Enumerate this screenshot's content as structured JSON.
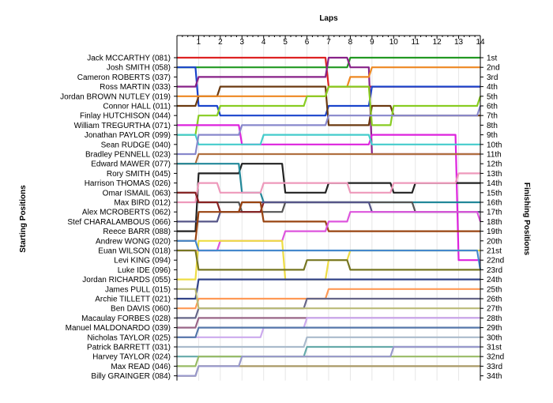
{
  "chart_data": {
    "type": "line",
    "title": "Laps",
    "xlabel": "Laps",
    "ylabel_left": "Starting Positions",
    "ylabel_right": "Finishing Positions",
    "x_ticks": [
      "1",
      "2",
      "3",
      "4",
      "5",
      "6",
      "7",
      "8",
      "9",
      "10",
      "11",
      "12",
      "13",
      "14"
    ],
    "xlim": [
      0,
      14
    ],
    "ylim": [
      1,
      34
    ],
    "grid": true,
    "drivers": [
      "Jack MCCARTHY (081)",
      "Josh SMITH (058)",
      "Cameron ROBERTS (037)",
      "Ross MARTIN (033)",
      "Jordan BROWN NUTLEY (019)",
      "Connor HALL (011)",
      "Finlay HUTCHISON (044)",
      "William TREGURTHA (071)",
      "Jonathan PAYLOR (099)",
      "Sean RUDGE (040)",
      "Bradley PENNELL (023)",
      "Edward MAWER (077)",
      "Rory SMITH (045)",
      "Harrison THOMAS (026)",
      "Omar ISMAIL (063)",
      "Max BIRD (012)",
      "Alex MCROBERTS (062)",
      "Stef CHARALAMBOUS (066)",
      "Reece BARR (088)",
      "Andrew WONG (020)",
      "Euan WILSON (018)",
      "Levi KING (094)",
      "Luke IDE (096)",
      "Jordan RICHARDS (055)",
      "James PULL (015)",
      "Archie TILLETT (021)",
      "Ben DAVIS (060)",
      "Macaulay FORBES (028)",
      "Manuel MALDONARDO (039)",
      "Nicholas TAYLOR (025)",
      "Patrick BARRETT (031)",
      "Harvey TAYLOR (024)",
      "Max READ (046)",
      "Billy GRAINGER (084)"
    ],
    "finishing_labels": [
      "1st",
      "2nd",
      "3rd",
      "4th",
      "5th",
      "6th",
      "7th",
      "8th",
      "9th",
      "10th",
      "11th",
      "12th",
      "13th",
      "14th",
      "15th",
      "16th",
      "17th",
      "18th",
      "19th",
      "20th",
      "21st",
      "22nd",
      "23rd",
      "24th",
      "25th",
      "26th",
      "27th",
      "28th",
      "29th",
      "30th",
      "31st",
      "32nd",
      "33rd",
      "34th"
    ],
    "series": [
      {
        "color": "#dd2222",
        "positions": [
          1,
          1,
          1,
          1,
          1,
          1,
          1,
          4,
          4,
          4,
          4,
          4,
          4,
          4,
          4
        ]
      },
      {
        "color": "#229922",
        "positions": [
          2,
          2,
          2,
          2,
          2,
          2,
          2,
          2,
          1,
          1,
          1,
          1,
          1,
          1,
          1
        ]
      },
      {
        "color": "#1a44cc",
        "positions": [
          2,
          6,
          7,
          7,
          7,
          7,
          7,
          6,
          6,
          4,
          4,
          4,
          4,
          4,
          4
        ]
      },
      {
        "color": "#882288",
        "positions": [
          4,
          3,
          3,
          3,
          3,
          3,
          3,
          1,
          2,
          11,
          11,
          11,
          11,
          11,
          11
        ]
      },
      {
        "color": "#6b3a10",
        "positions": [
          6,
          5,
          4,
          4,
          4,
          4,
          4,
          8,
          8,
          6,
          7,
          7,
          7,
          7,
          7
        ]
      },
      {
        "color": "#ee8822",
        "positions": [
          5,
          5,
          5,
          5,
          5,
          5,
          5,
          4,
          3,
          2,
          2,
          2,
          2,
          2,
          2
        ]
      },
      {
        "color": "#88cc22",
        "positions": [
          9,
          7,
          6,
          6,
          6,
          6,
          5,
          4,
          4,
          8,
          6,
          6,
          6,
          6,
          5
        ]
      },
      {
        "color": "#dd22dd",
        "positions": [
          8,
          8,
          8,
          10,
          10,
          10,
          10,
          10,
          10,
          9,
          9,
          9,
          9,
          22,
          22
        ]
      },
      {
        "color": "#44cccc",
        "positions": [
          9,
          10,
          10,
          10,
          9,
          9,
          9,
          9,
          9,
          10,
          10,
          10,
          10,
          10,
          10
        ]
      },
      {
        "color": "#8888cc",
        "positions": [
          11,
          9,
          9,
          8,
          8,
          8,
          8,
          7,
          7,
          7,
          7,
          7,
          7,
          7,
          6
        ]
      },
      {
        "color": "#b07040",
        "positions": [
          12,
          11,
          11,
          11,
          11,
          11,
          11,
          11,
          11,
          11,
          11,
          11,
          11,
          11,
          11
        ]
      },
      {
        "color": "#222222",
        "positions": [
          19,
          13,
          13,
          12,
          12,
          15,
          15,
          14,
          14,
          14,
          15,
          14,
          14,
          14,
          14
        ]
      },
      {
        "color": "#228899",
        "positions": [
          12,
          12,
          12,
          15,
          16,
          16,
          16,
          16,
          16,
          16,
          16,
          16,
          16,
          16,
          16
        ]
      },
      {
        "color": "#555555",
        "positions": [
          15,
          16,
          16,
          17,
          17,
          16,
          16,
          16,
          16,
          16,
          16,
          17,
          17,
          17,
          17
        ]
      },
      {
        "color": "#ee99bb",
        "positions": [
          16,
          14,
          15,
          15,
          14,
          14,
          14,
          14,
          15,
          15,
          14,
          14,
          14,
          13,
          13
        ]
      },
      {
        "color": "#882222",
        "positions": [
          15,
          16,
          17,
          17,
          16,
          16
        ]
      },
      {
        "color": "#555588",
        "positions": [
          18,
          18,
          17,
          16,
          16,
          16,
          16,
          16,
          16,
          17,
          17,
          17,
          17,
          17,
          17
        ]
      },
      {
        "color": "#994411",
        "positions": [
          20,
          17,
          17,
          16,
          18,
          18,
          18,
          19,
          19,
          19,
          19,
          19,
          19,
          19,
          19
        ]
      },
      {
        "color": "#dd55dd",
        "positions": [
          21,
          21,
          20,
          20,
          20,
          19,
          19,
          18,
          17,
          17,
          17,
          17,
          17,
          17,
          18
        ]
      },
      {
        "color": "#eedd44",
        "positions": [
          24,
          20,
          20,
          20,
          20,
          24,
          24,
          22,
          21,
          21,
          21,
          21,
          21,
          21,
          21
        ]
      },
      {
        "color": "#4488cc",
        "positions": [
          20,
          21,
          21,
          21,
          21,
          21,
          21,
          21,
          21,
          21,
          21,
          21,
          21,
          21,
          23
        ]
      },
      {
        "color": "#777722",
        "positions": [
          21,
          23,
          23,
          23,
          23,
          23,
          22,
          22,
          23,
          23,
          23,
          23,
          23,
          23,
          23
        ]
      },
      {
        "color": "#334488",
        "positions": [
          26,
          24,
          24,
          24,
          24,
          24,
          24,
          24,
          24,
          24,
          24,
          24,
          24,
          24,
          24
        ]
      },
      {
        "color": "#ff9955",
        "positions": [
          27,
          26,
          26,
          26,
          26,
          26,
          26,
          25,
          25,
          25,
          25,
          25,
          25,
          25,
          25
        ]
      },
      {
        "color": "#666688",
        "positions": [
          28,
          27,
          27,
          27,
          27,
          27,
          26,
          26,
          26,
          26,
          26,
          26,
          26,
          26,
          26
        ]
      },
      {
        "color": "#bbbb77",
        "positions": [
          25,
          27,
          27,
          27,
          27,
          27,
          27,
          27,
          27,
          27,
          27,
          27,
          27,
          27,
          27
        ]
      },
      {
        "color": "#996688",
        "positions": [
          29,
          28,
          28,
          28,
          28,
          28,
          28,
          28,
          28,
          28,
          28,
          28,
          28,
          28,
          28
        ]
      },
      {
        "color": "#ccaaee",
        "positions": [
          30,
          30,
          30,
          30,
          29,
          29,
          28,
          28,
          28,
          28,
          28,
          28,
          28,
          28,
          28
        ]
      },
      {
        "color": "#5577aa",
        "positions": [
          30,
          29,
          29,
          29,
          29,
          29,
          29,
          29,
          29,
          29,
          29,
          29,
          29,
          29,
          29
        ]
      },
      {
        "color": "#aabbcc",
        "positions": [
          31,
          31,
          31,
          31,
          31,
          31,
          30,
          30,
          30,
          30,
          30,
          30,
          30,
          30,
          30
        ]
      },
      {
        "color": "#66aaaa",
        "positions": [
          32,
          32,
          32,
          32,
          32,
          32,
          31,
          31,
          31,
          31,
          31,
          31,
          31,
          31,
          31
        ]
      },
      {
        "color": "#99bb66",
        "positions": [
          33,
          32,
          32,
          32,
          32,
          32,
          32,
          32,
          32,
          32,
          32,
          32,
          32,
          32,
          32
        ]
      },
      {
        "color": "#aa9966",
        "positions": [
          34,
          33,
          33,
          33,
          33,
          33,
          33,
          33,
          33,
          33,
          33,
          33,
          33,
          33,
          33
        ]
      },
      {
        "color": "#9999cc",
        "positions": [
          34,
          33,
          33,
          32,
          32,
          32,
          32,
          32,
          32,
          32,
          31,
          31,
          31,
          31,
          31
        ]
      }
    ]
  }
}
